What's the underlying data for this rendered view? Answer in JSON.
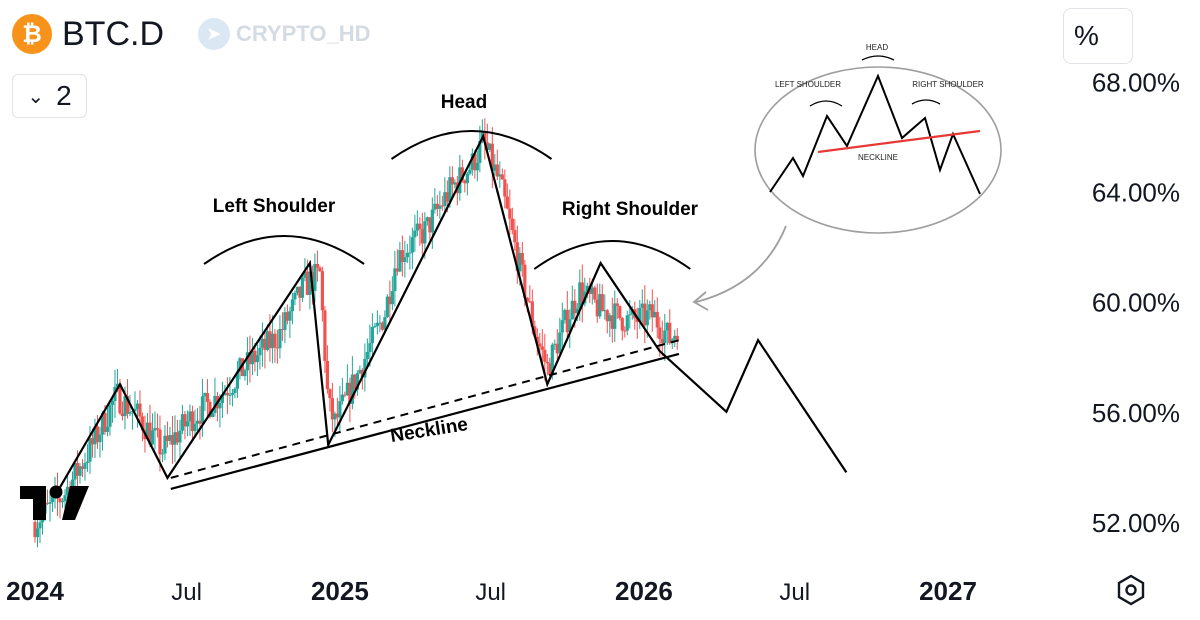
{
  "header": {
    "symbol": "BTC.D",
    "logo_glyph": "₿",
    "logo_color": "#f7931a",
    "watermark": "CRYPTO_HD",
    "interval_value": "2",
    "interval_icon": "chevron-down-icon",
    "scale_button": "%"
  },
  "colors": {
    "up": "#26a69a",
    "down": "#ef5350",
    "annotation": "#000000",
    "neckline_red": "#e53935"
  },
  "chart_data": {
    "type": "candlestick",
    "title": "BTC.D",
    "y_axis": {
      "ticks": [
        "68.00%",
        "64.00%",
        "60.00%",
        "56.00%",
        "52.00%"
      ],
      "tick_values": [
        68,
        64,
        60,
        56,
        52
      ],
      "ylim": [
        50.8,
        69.5
      ],
      "position": "right"
    },
    "x_axis": {
      "ticks": [
        {
          "label": "2024",
          "date": "2024-01-01",
          "bold": true
        },
        {
          "label": "Jul",
          "date": "2024-07-01",
          "bold": false
        },
        {
          "label": "2025",
          "date": "2025-01-01",
          "bold": true
        },
        {
          "label": "Jul",
          "date": "2025-07-01",
          "bold": false
        },
        {
          "label": "2026",
          "date": "2026-01-01",
          "bold": true
        },
        {
          "label": "Jul",
          "date": "2026-07-01",
          "bold": false
        },
        {
          "label": "2027",
          "date": "2027-01-01",
          "bold": true
        }
      ],
      "range": [
        "2024-01-01",
        "2027-01-01"
      ]
    },
    "close_path": [
      [
        "2024-01-01",
        52.0
      ],
      [
        "2024-02-05",
        53.0
      ],
      [
        "2024-03-10",
        54.8
      ],
      [
        "2024-04-08",
        56.6
      ],
      [
        "2024-05-05",
        55.8
      ],
      [
        "2024-06-02",
        54.6
      ],
      [
        "2024-07-07",
        55.8
      ],
      [
        "2024-08-10",
        56.6
      ],
      [
        "2024-09-15",
        57.8
      ],
      [
        "2024-10-20",
        58.8
      ],
      [
        "2024-11-20",
        60.6
      ],
      [
        "2024-12-08",
        61.0
      ],
      [
        "2024-12-18",
        56.2
      ],
      [
        "2024-12-26",
        55.6
      ],
      [
        "2025-01-20",
        57.2
      ],
      [
        "2025-02-24",
        59.6
      ],
      [
        "2025-03-10",
        61.6
      ],
      [
        "2025-04-14",
        62.6
      ],
      [
        "2025-05-12",
        64.0
      ],
      [
        "2025-06-09",
        65.0
      ],
      [
        "2025-06-22",
        65.8
      ],
      [
        "2025-07-13",
        64.2
      ],
      [
        "2025-08-03",
        61.5
      ],
      [
        "2025-08-24",
        58.8
      ],
      [
        "2025-09-07",
        57.6
      ],
      [
        "2025-09-28",
        59.2
      ],
      [
        "2025-10-16",
        60.4
      ],
      [
        "2025-11-10",
        59.7
      ],
      [
        "2025-12-15",
        59.3
      ],
      [
        "2026-01-12",
        59.5
      ],
      [
        "2026-02-02",
        58.6
      ],
      [
        "2026-02-12",
        59.2
      ]
    ],
    "pattern": {
      "labels": [
        "Left Shoulder",
        "Head",
        "Right Shoulder",
        "Neckline"
      ],
      "zigzag": [
        [
          "2024-01-26",
          53.0
        ],
        [
          "2024-04-12",
          57.0
        ],
        [
          "2024-06-08",
          53.6
        ],
        [
          "2024-11-26",
          61.4
        ],
        [
          "2024-12-18",
          54.8
        ],
        [
          "2025-06-22",
          66.0
        ],
        [
          "2025-09-07",
          57.0
        ],
        [
          "2025-11-10",
          61.4
        ],
        [
          "2026-01-20",
          58.2
        ],
        [
          "2026-04-10",
          56.0
        ],
        [
          "2026-05-18",
          58.6
        ],
        [
          "2026-09-01",
          53.8
        ]
      ],
      "neckline_solid": [
        [
          "2024-06-12",
          53.2
        ],
        [
          "2026-02-12",
          58.1
        ]
      ],
      "neckline_dashed": [
        [
          "2024-06-12",
          53.6
        ],
        [
          "2026-02-12",
          58.6
        ]
      ]
    },
    "inset": {
      "labels": [
        "HEAD",
        "LEFT SHOULDER",
        "RIGHT SHOULDER",
        "NECKLINE"
      ]
    }
  }
}
